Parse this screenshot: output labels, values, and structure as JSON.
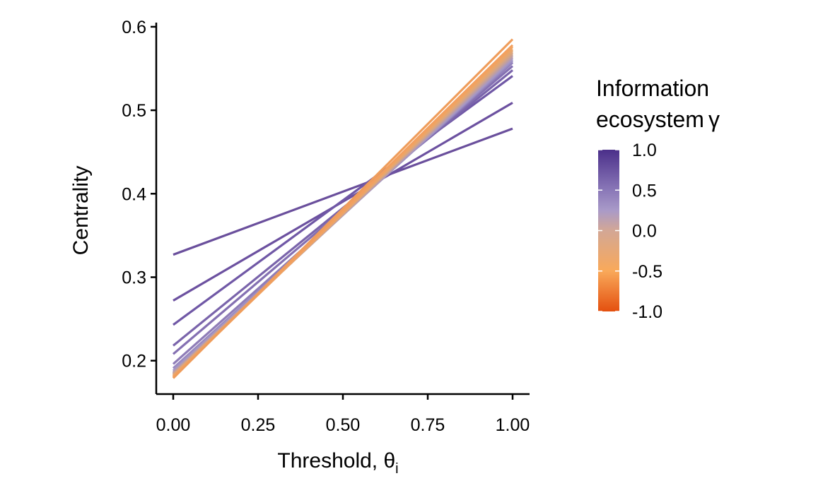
{
  "chart_data": {
    "type": "line",
    "title": "",
    "xlabel": "Threshold, θ",
    "xlabel_subscript": "i",
    "ylabel": "Centrality",
    "xlim": [
      -0.05,
      1.05
    ],
    "ylim": [
      0.16,
      0.605
    ],
    "x_ticks": [
      0.0,
      0.25,
      0.5,
      0.75,
      1.0
    ],
    "x_tick_labels": [
      "0.00",
      "0.25",
      "0.50",
      "0.75",
      "1.00"
    ],
    "y_ticks": [
      0.2,
      0.3,
      0.4,
      0.5,
      0.6
    ],
    "y_tick_labels": [
      "0.2",
      "0.3",
      "0.4",
      "0.5",
      "0.6"
    ],
    "grid": false,
    "series": [
      {
        "gamma": 1.0,
        "color": "#6a4f9c",
        "x": [
          0,
          1
        ],
        "y": [
          0.327,
          0.478
        ]
      },
      {
        "gamma": 0.9,
        "color": "#6c51a0",
        "x": [
          0,
          1
        ],
        "y": [
          0.272,
          0.509
        ]
      },
      {
        "gamma": 0.8,
        "color": "#7058a6",
        "x": [
          0,
          1
        ],
        "y": [
          0.243,
          0.541
        ]
      },
      {
        "gamma": 0.7,
        "color": "#7a64ab",
        "x": [
          0,
          1
        ],
        "y": [
          0.218,
          0.548
        ]
      },
      {
        "gamma": 0.6,
        "color": "#8470b2",
        "x": [
          0,
          1
        ],
        "y": [
          0.208,
          0.553
        ]
      },
      {
        "gamma": 0.5,
        "color": "#8f7db8",
        "x": [
          0,
          1
        ],
        "y": [
          0.196,
          0.557
        ]
      },
      {
        "gamma": 0.4,
        "color": "#9a8ac0",
        "x": [
          0,
          1
        ],
        "y": [
          0.191,
          0.559
        ]
      },
      {
        "gamma": 0.3,
        "color": "#a397c6",
        "x": [
          0,
          1
        ],
        "y": [
          0.188,
          0.561
        ]
      },
      {
        "gamma": 0.2,
        "color": "#b09ab8",
        "x": [
          0,
          1
        ],
        "y": [
          0.186,
          0.563
        ]
      },
      {
        "gamma": 0.1,
        "color": "#bd9ea6",
        "x": [
          0,
          1
        ],
        "y": [
          0.185,
          0.565
        ]
      },
      {
        "gamma": 0.0,
        "color": "#c9a295",
        "x": [
          0,
          1
        ],
        "y": [
          0.184,
          0.567
        ]
      },
      {
        "gamma": -0.1,
        "color": "#d5a586",
        "x": [
          0,
          1
        ],
        "y": [
          0.183,
          0.569
        ]
      },
      {
        "gamma": -0.2,
        "color": "#dfa679",
        "x": [
          0,
          1
        ],
        "y": [
          0.182,
          0.571
        ]
      },
      {
        "gamma": -0.3,
        "color": "#e8a66c",
        "x": [
          0,
          1
        ],
        "y": [
          0.181,
          0.573
        ]
      },
      {
        "gamma": -0.4,
        "color": "#f0a462",
        "x": [
          0,
          1
        ],
        "y": [
          0.181,
          0.576
        ]
      },
      {
        "gamma": -0.5,
        "color": "#f2a060",
        "x": [
          0,
          1
        ],
        "y": [
          0.18,
          0.578
        ]
      },
      {
        "gamma": -1.0,
        "color": "#ef9d5c",
        "x": [
          0,
          1
        ],
        "y": [
          0.179,
          0.585
        ]
      }
    ],
    "legend": {
      "title_line1": "Information",
      "title_line2": "ecosystem",
      "title_symbol": "γ",
      "placement": "right",
      "type": "colorbar",
      "range": [
        -1.0,
        1.0
      ],
      "ticks": [
        1.0,
        0.5,
        0.0,
        -0.5,
        -1.0
      ],
      "tick_labels": [
        "1.0",
        "0.5",
        "0.0",
        "-0.5",
        "-1.0"
      ],
      "gradient_stops": [
        {
          "value": 1.0,
          "color": "#4b2f8a"
        },
        {
          "value": 0.5,
          "color": "#8a78b8"
        },
        {
          "value": 0.25,
          "color": "#a99ac8"
        },
        {
          "value": 0.0,
          "color": "#d3a795"
        },
        {
          "value": -0.5,
          "color": "#f9a95a"
        },
        {
          "value": -1.0,
          "color": "#e4500f"
        }
      ]
    }
  }
}
